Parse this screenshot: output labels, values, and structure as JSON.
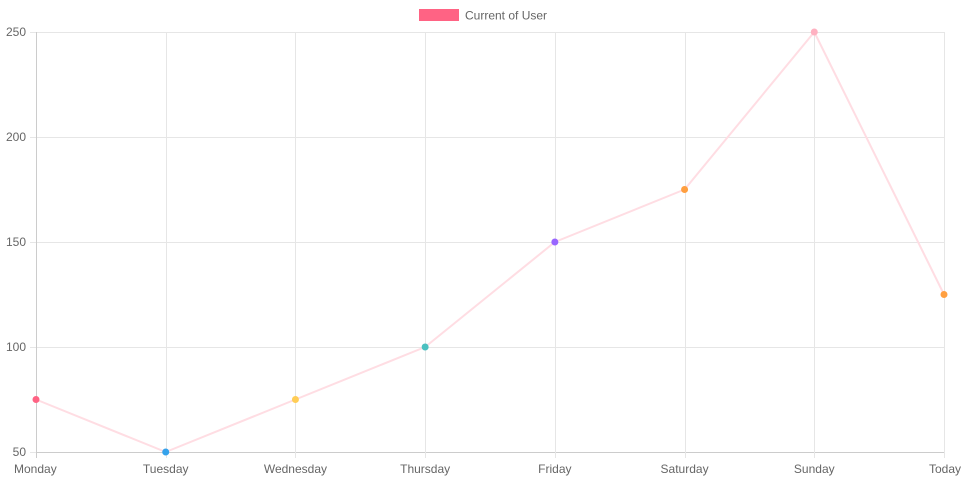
{
  "chart_data": {
    "type": "line",
    "categories": [
      "Monday",
      "Tuesday",
      "Wednesday",
      "Thursday",
      "Friday",
      "Saturday",
      "Sunday",
      "Today"
    ],
    "series": [
      {
        "name": "Current of User",
        "values": [
          75,
          50,
          75,
          100,
          150,
          175,
          250,
          125
        ],
        "line_color": "#ffdde3",
        "legend_color": "#ff6384",
        "point_colors": [
          "#ff6384",
          "#36a2eb",
          "#ffcd56",
          "#4bc0c0",
          "#9966ff",
          "#ff9f40",
          "#ffb1c1",
          "#ff9f40"
        ]
      }
    ],
    "ylim": [
      50,
      250
    ],
    "yticks": [
      50,
      100,
      150,
      200,
      250
    ],
    "grid": true,
    "legend": "top-center",
    "title": "",
    "xlabel": "",
    "ylabel": ""
  }
}
